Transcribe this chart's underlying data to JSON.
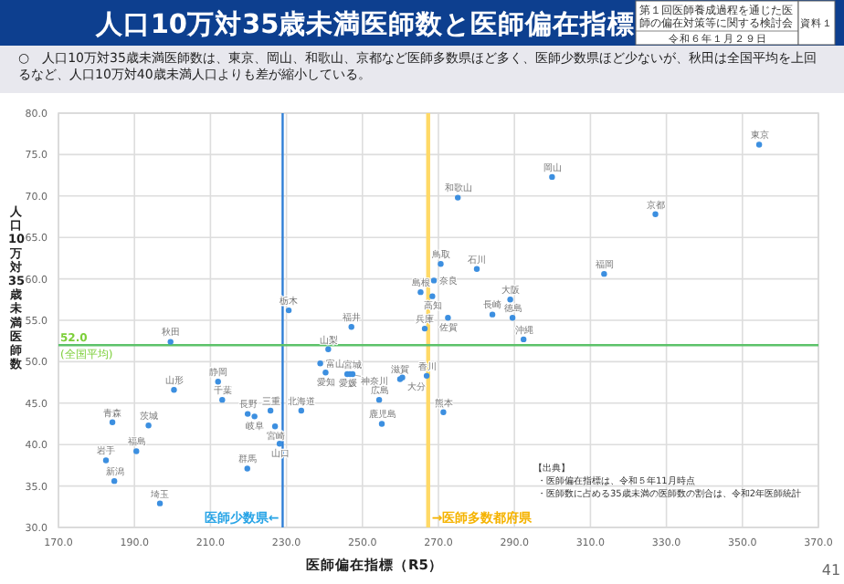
{
  "chart_data": {
    "type": "scatter",
    "title": "人口10万対35歳未満医師数と医師偏在指標",
    "subtitle": "○　人口10万対35歳未満医師数は、東京、岡山、和歌山、京都など医師多数県ほど多く、医師少数県ほど少ないが、秋田は全国平均を上回るなど、人口10万対40歳未満人口よりも差が縮小している。",
    "xlabel": "医師偏在指標（R5）",
    "ylabel": "人口10万対35歳未満医師数",
    "xlim": [
      170,
      370
    ],
    "ylim": [
      30,
      80
    ],
    "xticks": [
      {
        "value": 170,
        "label": "170.0"
      },
      {
        "value": 190,
        "label": "190.0"
      },
      {
        "value": 210,
        "label": "210.0"
      },
      {
        "value": 230,
        "label": "230.0"
      },
      {
        "value": 250,
        "label": "250.0"
      },
      {
        "value": 270,
        "label": "270.0"
      },
      {
        "value": 290,
        "label": "290.0"
      },
      {
        "value": 310,
        "label": "310.0"
      },
      {
        "value": 330,
        "label": "330.0"
      },
      {
        "value": 350,
        "label": "350.0"
      },
      {
        "value": 370,
        "label": "370.0"
      }
    ],
    "yticks": [
      {
        "value": 30,
        "label": "30.0"
      },
      {
        "value": 35,
        "label": "35.0"
      },
      {
        "value": 40,
        "label": "40.0"
      },
      {
        "value": 45,
        "label": "45.0"
      },
      {
        "value": 50,
        "label": "50.0"
      },
      {
        "value": 55,
        "label": "55.0"
      },
      {
        "value": 60,
        "label": "60.0"
      },
      {
        "value": 65,
        "label": "65.0"
      },
      {
        "value": 70,
        "label": "70.0"
      },
      {
        "value": 75,
        "label": "75.0"
      },
      {
        "value": 80,
        "label": "80.0"
      }
    ],
    "grid": true,
    "marker": "circle",
    "series": [
      {
        "color": "#3c8fe0",
        "x": [
          354.4,
          299.9,
          275.1,
          327.1,
          270.6,
          280.1,
          313.6,
          268.8,
          265.3,
          268.4,
          288.9,
          284.2,
          289.5,
          272.5,
          266.4,
          292.4,
          230.6,
          247.1,
          241.0,
          199.5,
          266.9,
          259.9,
          260.5,
          238.9,
          240.3,
          246.0,
          247.4,
          246.7,
          254.4,
          255.1,
          271.3,
          233.9,
          225.8,
          219.8,
          221.6,
          227.0,
          228.2,
          219.7,
          212.0,
          200.4,
          213.1,
          184.2,
          193.7,
          190.5,
          182.5,
          184.7,
          196.7
        ],
        "values": [
          76.2,
          72.3,
          69.8,
          67.8,
          61.8,
          61.2,
          60.6,
          59.8,
          58.4,
          57.9,
          57.5,
          55.7,
          55.3,
          55.3,
          54.0,
          52.7,
          56.2,
          54.2,
          51.5,
          52.4,
          48.3,
          47.9,
          48.1,
          49.8,
          48.7,
          48.5,
          48.5,
          48.5,
          45.4,
          42.5,
          43.9,
          44.1,
          44.1,
          43.7,
          43.4,
          42.2,
          40.1,
          37.1,
          47.6,
          46.6,
          45.4,
          42.7,
          42.3,
          39.2,
          38.1,
          35.6,
          32.9
        ]
      }
    ],
    "ref_lines": [
      {
        "axis": "x",
        "value": 229.0,
        "label": "医師少数県←",
        "color": "#2f7fd6"
      },
      {
        "axis": "x",
        "value": 267.3,
        "label": "→医師多数都府県",
        "color": "#ffd966"
      },
      {
        "axis": "y",
        "value": 52.0,
        "label": "52.0 (全国平均)",
        "color": "#5cc26a"
      }
    ],
    "annotations": [
      {
        "text": "東京",
        "x": 354.4,
        "y": 76.2
      },
      {
        "text": "岡山",
        "x": 299.9,
        "y": 72.3
      },
      {
        "text": "和歌山",
        "x": 275.1,
        "y": 69.8
      },
      {
        "text": "京都",
        "x": 327.1,
        "y": 67.8
      },
      {
        "text": "鳥取",
        "x": 270.6,
        "y": 61.8
      },
      {
        "text": "石川",
        "x": 280.1,
        "y": 61.2
      },
      {
        "text": "福岡",
        "x": 313.6,
        "y": 60.6
      },
      {
        "text": "奈良",
        "x": 268.8,
        "y": 59.8
      },
      {
        "text": "島根",
        "x": 265.3,
        "y": 58.4
      },
      {
        "text": "高知",
        "x": 268.4,
        "y": 57.9
      },
      {
        "text": "大阪",
        "x": 288.9,
        "y": 57.5
      },
      {
        "text": "長崎",
        "x": 284.2,
        "y": 55.7
      },
      {
        "text": "徳島",
        "x": 289.5,
        "y": 55.3
      },
      {
        "text": "佐賀",
        "x": 272.5,
        "y": 55.3
      },
      {
        "text": "兵庫",
        "x": 266.4,
        "y": 54.0
      },
      {
        "text": "沖縄",
        "x": 292.4,
        "y": 52.7
      },
      {
        "text": "栃木",
        "x": 230.6,
        "y": 56.2
      },
      {
        "text": "福井",
        "x": 247.1,
        "y": 54.2
      },
      {
        "text": "山梨",
        "x": 241.0,
        "y": 51.5
      },
      {
        "text": "秋田",
        "x": 199.5,
        "y": 52.4
      },
      {
        "text": "香川",
        "x": 266.9,
        "y": 48.3
      },
      {
        "text": "滋賀",
        "x": 259.9,
        "y": 47.9
      },
      {
        "text": "大分",
        "x": 260.5,
        "y": 48.1
      },
      {
        "text": "富山",
        "x": 238.9,
        "y": 49.8
      },
      {
        "text": "愛知",
        "x": 240.3,
        "y": 48.7
      },
      {
        "text": "愛媛",
        "x": 246.0,
        "y": 48.5
      },
      {
        "text": "宮城",
        "x": 247.4,
        "y": 48.5
      },
      {
        "text": "神奈川",
        "x": 246.7,
        "y": 48.5
      },
      {
        "text": "広島",
        "x": 254.4,
        "y": 45.4
      },
      {
        "text": "鹿児島",
        "x": 255.1,
        "y": 42.5
      },
      {
        "text": "熊本",
        "x": 271.3,
        "y": 43.9
      },
      {
        "text": "北海道",
        "x": 233.9,
        "y": 44.1
      },
      {
        "text": "三重",
        "x": 225.8,
        "y": 44.1
      },
      {
        "text": "長野",
        "x": 219.8,
        "y": 43.7
      },
      {
        "text": "岐阜",
        "x": 221.6,
        "y": 43.4
      },
      {
        "text": "宮崎",
        "x": 227.0,
        "y": 42.2
      },
      {
        "text": "山口",
        "x": 228.2,
        "y": 40.1
      },
      {
        "text": "群馬",
        "x": 219.7,
        "y": 37.1
      },
      {
        "text": "静岡",
        "x": 212.0,
        "y": 47.6
      },
      {
        "text": "山形",
        "x": 200.4,
        "y": 46.6
      },
      {
        "text": "千葉",
        "x": 213.1,
        "y": 45.4
      },
      {
        "text": "青森",
        "x": 184.2,
        "y": 42.7
      },
      {
        "text": "茨城",
        "x": 193.7,
        "y": 42.3
      },
      {
        "text": "福島",
        "x": 190.5,
        "y": 39.2
      },
      {
        "text": "岩手",
        "x": 182.5,
        "y": 38.1
      },
      {
        "text": "新潟",
        "x": 184.7,
        "y": 35.6
      },
      {
        "text": "埼玉",
        "x": 196.7,
        "y": 32.9
      },
      "第１回医師養成過程を通じた医師の偏在対策等に関する検討会",
      "令和６年１月２９日",
      "資料１",
      "【出典】",
      "・医師偏在指標は、令和５年11月時点",
      "・医師数に占める35歳未満の医師数の割合は、令和2年医師統計",
      "41"
    ]
  }
}
